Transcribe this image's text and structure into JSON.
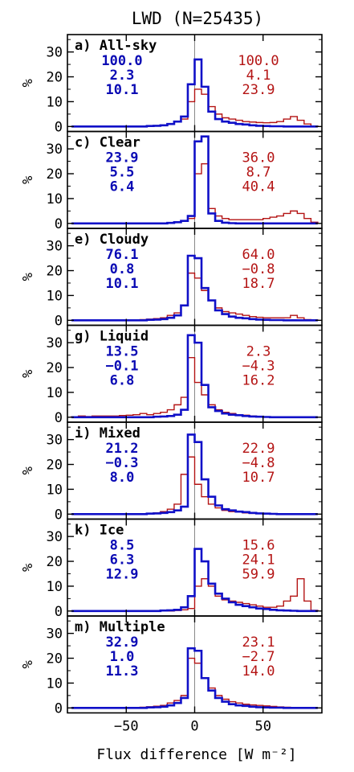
{
  "colors": {
    "series_a": "#1010c8",
    "series_b": "#b41414",
    "zero_line": "#888888"
  },
  "chart_data": {
    "type": "histogram",
    "title": "LWD (N=25435)",
    "xlabel": "Flux difference [W m⁻²]",
    "ylabel": "%",
    "xlim": [
      -93,
      93
    ],
    "ylim": [
      -2,
      37
    ],
    "xticks": [
      -50,
      0,
      50
    ],
    "xtick_labels": [
      "−50",
      "0",
      "50"
    ],
    "yticks": [
      0,
      10,
      20,
      30
    ],
    "ytick_labels": [
      "0",
      "10",
      "20",
      "30"
    ],
    "bin_width": 5,
    "bin_edges": [
      -90,
      -85,
      -80,
      -75,
      -70,
      -65,
      -60,
      -55,
      -50,
      -45,
      -40,
      -35,
      -30,
      -25,
      -20,
      -15,
      -10,
      -5,
      0,
      5,
      10,
      15,
      20,
      25,
      30,
      35,
      40,
      45,
      50,
      55,
      60,
      65,
      70,
      75,
      80,
      85,
      90
    ],
    "panels": [
      {
        "label": "a) All-sky",
        "blue_stats": [
          "100.0",
          "2.3",
          "10.1"
        ],
        "red_stats": [
          "100.0",
          "4.1",
          "23.9"
        ],
        "blue": [
          0,
          0,
          0,
          0,
          0,
          0,
          0,
          0,
          0,
          0,
          0,
          0.2,
          0.3,
          0.5,
          1,
          2,
          4,
          17,
          27,
          16,
          6,
          3,
          2,
          1.5,
          1,
          0.8,
          0.5,
          0.3,
          0.2,
          0.1,
          0.1,
          0,
          0,
          0,
          0,
          0
        ],
        "red": [
          0,
          0,
          0,
          0,
          0,
          0,
          0.1,
          0.1,
          0.1,
          0.1,
          0.1,
          0.2,
          0.3,
          0.5,
          1,
          2,
          3,
          10,
          15,
          13,
          8,
          5,
          3.5,
          3,
          2.5,
          2,
          1.8,
          1.6,
          1.5,
          1.6,
          2,
          3,
          4,
          2.5,
          1,
          0.2
        ]
      },
      {
        "label": "c) Clear",
        "blue_stats": [
          "23.9",
          "5.5",
          "6.4"
        ],
        "red_stats": [
          "36.0",
          "8.7",
          "40.4"
        ],
        "blue": [
          0,
          0,
          0,
          0,
          0,
          0,
          0,
          0,
          0,
          0,
          0,
          0,
          0,
          0,
          0.2,
          0.5,
          1,
          3,
          33,
          35,
          4,
          1,
          0.3,
          0.1,
          0,
          0,
          0,
          0,
          0,
          0,
          0,
          0,
          0,
          0,
          0,
          0
        ],
        "red": [
          0,
          0,
          0,
          0,
          0,
          0,
          0,
          0,
          0,
          0,
          0,
          0,
          0,
          0.1,
          0.2,
          0.5,
          1,
          2,
          20,
          24,
          6,
          3,
          2,
          1.5,
          1.5,
          1.5,
          1.5,
          1.5,
          2,
          2.5,
          3,
          4,
          5,
          4,
          2,
          0.5
        ]
      },
      {
        "label": "e) Cloudy",
        "blue_stats": [
          "76.1",
          "0.8",
          "10.1"
        ],
        "red_stats": [
          "64.0",
          "−0.8",
          "18.7"
        ],
        "blue": [
          0,
          0,
          0,
          0,
          0,
          0,
          0,
          0,
          0,
          0,
          0,
          0.2,
          0.3,
          0.5,
          1,
          2,
          6,
          26,
          25,
          13,
          8,
          4,
          2.5,
          1.5,
          1,
          0.8,
          0.5,
          0.3,
          0.2,
          0.1,
          0.1,
          0,
          0,
          0,
          0,
          0
        ],
        "red": [
          0,
          0,
          0,
          0,
          0,
          0,
          0.1,
          0.1,
          0.2,
          0.2,
          0.3,
          0.5,
          0.7,
          1,
          2,
          3,
          6,
          19,
          17,
          12,
          8,
          5,
          3.5,
          3,
          2.5,
          2,
          1.5,
          1.2,
          1,
          1,
          1,
          1,
          2,
          1,
          0.3,
          0.1
        ]
      },
      {
        "label": "g) Liquid",
        "blue_stats": [
          "13.5",
          "−0.1",
          "6.8"
        ],
        "red_stats": [
          "2.3",
          "−4.3",
          "16.2"
        ],
        "blue": [
          0,
          0,
          0,
          0,
          0,
          0,
          0,
          0,
          0,
          0,
          0,
          0,
          0.2,
          0.3,
          0.5,
          1,
          3,
          33,
          30,
          13,
          4,
          2.5,
          1.5,
          1,
          0.8,
          0.5,
          0.3,
          0.2,
          0.1,
          0,
          0,
          0,
          0,
          0,
          0,
          0
        ],
        "red": [
          0.2,
          0.5,
          0.3,
          0.5,
          0.5,
          0.5,
          0.5,
          0.7,
          0.8,
          1,
          1.5,
          1,
          1.5,
          2,
          3,
          5,
          8,
          24,
          14,
          9,
          5,
          3,
          2,
          1.5,
          1,
          0.8,
          0.5,
          0.3,
          0.2,
          0.1,
          0,
          0,
          0,
          0,
          0,
          0
        ]
      },
      {
        "label": "i) Mixed",
        "blue_stats": [
          "21.2",
          "−0.3",
          "8.0"
        ],
        "red_stats": [
          "22.9",
          "−4.8",
          "10.7"
        ],
        "blue": [
          0,
          0,
          0,
          0,
          0,
          0,
          0,
          0,
          0,
          0,
          0,
          0.2,
          0.3,
          0.5,
          0.8,
          1.5,
          3,
          32,
          29,
          14,
          7,
          3.5,
          2,
          1.5,
          1,
          0.8,
          0.5,
          0.3,
          0.2,
          0.1,
          0,
          0,
          0,
          0,
          0,
          0
        ],
        "red": [
          0,
          0,
          0,
          0,
          0,
          0,
          0,
          0,
          0.1,
          0.1,
          0.2,
          0.3,
          0.5,
          1,
          2,
          4,
          16,
          23,
          12,
          7,
          4,
          2.5,
          1.5,
          1,
          0.8,
          0.5,
          0.3,
          0.2,
          0.1,
          0.1,
          0,
          0,
          0,
          0,
          0,
          0
        ]
      },
      {
        "label": "k) Ice",
        "blue_stats": [
          "8.5",
          "6.3",
          "12.9"
        ],
        "red_stats": [
          "15.6",
          "24.1",
          "59.9"
        ],
        "blue": [
          0,
          0,
          0,
          0,
          0,
          0,
          0,
          0,
          0,
          0,
          0,
          0,
          0,
          0.2,
          0.3,
          0.5,
          1.5,
          6,
          25,
          20,
          11,
          7,
          5,
          3.5,
          2.5,
          2,
          1.5,
          1,
          0.8,
          0.5,
          0.3,
          0.2,
          0.1,
          0,
          0,
          0
        ],
        "red": [
          0,
          0,
          0,
          0,
          0,
          0,
          0,
          0,
          0,
          0,
          0,
          0,
          0,
          0,
          0,
          0.2,
          0.5,
          1,
          10,
          13,
          10,
          6,
          4.5,
          4,
          3.5,
          3,
          2.5,
          2,
          1.5,
          1.5,
          2,
          4,
          6,
          13,
          4,
          0.3
        ]
      },
      {
        "label": "m) Multiple",
        "blue_stats": [
          "32.9",
          "1.0",
          "11.3"
        ],
        "red_stats": [
          "23.1",
          "−2.7",
          "14.0"
        ],
        "blue": [
          0,
          0,
          0,
          0,
          0,
          0,
          0,
          0,
          0,
          0,
          0,
          0.2,
          0.3,
          0.5,
          1,
          2,
          4,
          24,
          23,
          12,
          7,
          4,
          2.5,
          1.5,
          1,
          0.8,
          0.5,
          0.3,
          0.2,
          0.1,
          0.1,
          0,
          0,
          0,
          0,
          0
        ],
        "red": [
          0,
          0,
          0,
          0,
          0,
          0,
          0.1,
          0.1,
          0.2,
          0.2,
          0.3,
          0.5,
          0.7,
          1,
          2,
          3,
          5,
          20,
          18,
          12,
          8,
          5,
          3.5,
          2.5,
          2,
          1.5,
          1.2,
          1,
          0.8,
          0.6,
          0.4,
          0.3,
          0.2,
          0.1,
          0,
          0
        ]
      }
    ]
  }
}
